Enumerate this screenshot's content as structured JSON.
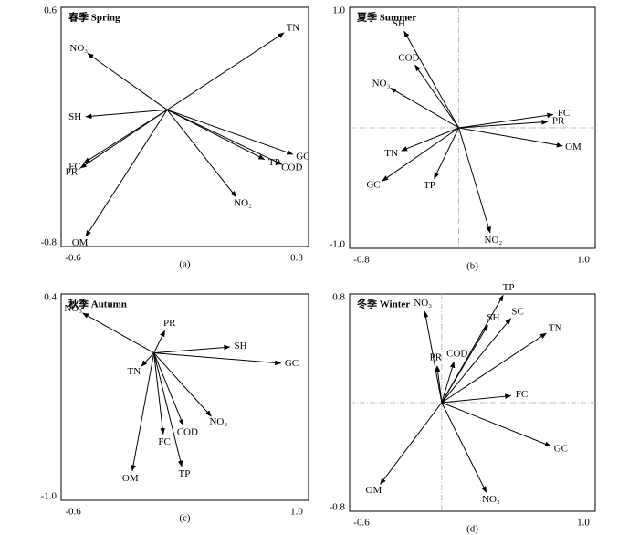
{
  "chart_data": [
    {
      "type": "biplot",
      "title": "春季 Spring",
      "caption": "(a)",
      "xlim": [
        -0.6,
        0.8
      ],
      "ylim": [
        -0.8,
        0.6
      ],
      "xticks": [
        -0.6,
        0.8
      ],
      "yticks": [
        -0.8,
        0.6
      ],
      "color": "#000000",
      "origin_lines": false,
      "labels": [
        "TN",
        "NO₃",
        "SH",
        "PR",
        "FC",
        "OM",
        "NO₂",
        "TP",
        "COD",
        "GC"
      ],
      "x": [
        0.66,
        -0.45,
        -0.46,
        -0.49,
        -0.47,
        -0.46,
        0.39,
        0.55,
        0.65,
        0.71
      ],
      "y": [
        0.45,
        0.33,
        -0.04,
        -0.34,
        -0.31,
        -0.74,
        -0.51,
        -0.29,
        -0.32,
        -0.26
      ]
    },
    {
      "type": "biplot",
      "title": "夏季 Summer",
      "caption": "(b)",
      "xlim": [
        -0.8,
        1.0
      ],
      "ylim": [
        -1.0,
        1.0
      ],
      "xticks": [
        -0.8,
        {
          "value": 1,
          "label": "1.0"
        }
      ],
      "yticks": [
        {
          "value": -1,
          "label": "-1.0"
        },
        {
          "value": 1,
          "label": "1.0"
        }
      ],
      "color": "#000000",
      "origin_lines": true,
      "labels": [
        "SH",
        "COD",
        "NO₃",
        "FC",
        "PR",
        "OM",
        "TN",
        "GC",
        "TP",
        "NO₂"
      ],
      "x": [
        -0.4,
        -0.32,
        -0.5,
        0.69,
        0.65,
        0.76,
        -0.42,
        -0.56,
        -0.18,
        0.23
      ],
      "y": [
        0.8,
        0.52,
        0.33,
        0.11,
        0.05,
        -0.15,
        -0.19,
        -0.44,
        -0.42,
        -0.87
      ]
    },
    {
      "type": "biplot",
      "title": "秋季 Autumn",
      "caption": "(c)",
      "xlim": [
        -0.6,
        1.0
      ],
      "ylim": [
        -1.0,
        0.4
      ],
      "xticks": [
        -0.6,
        {
          "value": 1,
          "label": "1.0"
        }
      ],
      "yticks": [
        {
          "value": -1,
          "label": "-1.0"
        },
        0.4
      ],
      "color": "#000000",
      "origin_lines": false,
      "labels": [
        "NO₃",
        "PR",
        "SH",
        "GC",
        "TN",
        "NO₂",
        "COD",
        "FC",
        "TP",
        "OM"
      ],
      "x": [
        -0.46,
        0.07,
        0.49,
        0.82,
        -0.08,
        0.37,
        0.19,
        0.06,
        0.18,
        -0.14
      ],
      "y": [
        0.27,
        0.15,
        0.04,
        -0.07,
        -0.09,
        -0.43,
        -0.49,
        -0.55,
        -0.77,
        -0.8
      ]
    },
    {
      "type": "biplot",
      "title": "冬季 Winter",
      "caption": "(d)",
      "xlim": [
        -0.6,
        1.0
      ],
      "ylim": [
        -0.8,
        0.8
      ],
      "xticks": [
        -0.6,
        {
          "value": 1,
          "label": "1.0"
        }
      ],
      "yticks": [
        -0.8,
        0.8
      ],
      "color": "#000000",
      "origin_lines": true,
      "labels": [
        "TP",
        "NO₃",
        "SC",
        "SH",
        "TN",
        "PR",
        "COD",
        "FC",
        "GC",
        "NO₂",
        "OM"
      ],
      "x": [
        0.4,
        -0.11,
        0.45,
        0.3,
        0.68,
        -0.03,
        0.08,
        0.45,
        0.71,
        0.29,
        -0.4
      ],
      "y": [
        0.79,
        0.67,
        0.62,
        0.57,
        0.51,
        0.27,
        0.3,
        0.05,
        -0.32,
        -0.66,
        -0.6
      ]
    }
  ]
}
